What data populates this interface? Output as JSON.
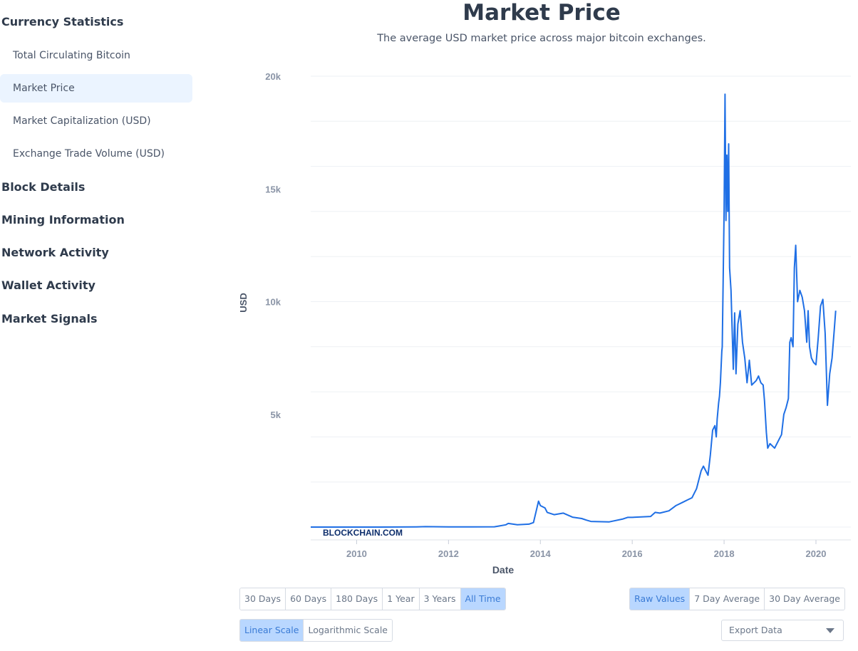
{
  "sidebar": {
    "sections": [
      {
        "label": "Currency Statistics"
      },
      {
        "label": "Block Details"
      },
      {
        "label": "Mining Information"
      },
      {
        "label": "Network Activity"
      },
      {
        "label": "Wallet Activity"
      },
      {
        "label": "Market Signals"
      }
    ],
    "sub_items": [
      {
        "label": "Total Circulating Bitcoin"
      },
      {
        "label": "Market Price"
      },
      {
        "label": "Market Capitalization (USD)"
      },
      {
        "label": "Exchange Trade Volume (USD)"
      }
    ]
  },
  "page": {
    "title": "Market Price",
    "subtitle": "The average USD market price across major bitcoin exchanges."
  },
  "watermark": "BLOCKCHAIN.COM",
  "controls": {
    "ranges": [
      "30 Days",
      "60 Days",
      "180 Days",
      "1 Year",
      "3 Years",
      "All Time"
    ],
    "active_range": "All Time",
    "averages": [
      "Raw Values",
      "7 Day Average",
      "30 Day Average"
    ],
    "active_average": "Raw Values",
    "scales": [
      "Linear Scale",
      "Logarithmic Scale"
    ],
    "active_scale": "Linear Scale",
    "export_label": "Export Data"
  },
  "colors": {
    "line": "#1f6fe5",
    "accent_bg": "#b9d7ff",
    "active_item_bg": "#ebf4ff"
  },
  "chart_data": {
    "type": "line",
    "title": "Market Price",
    "subtitle": "The average USD market price across major bitcoin exchanges.",
    "xlabel": "Date",
    "ylabel": "USD",
    "xlim": [
      2009.0,
      2020.45
    ],
    "ylim": [
      0,
      20000
    ],
    "x_ticks": [
      2010,
      2012,
      2014,
      2016,
      2018,
      2020
    ],
    "y_ticks": [
      5000,
      10000,
      15000,
      20000
    ],
    "y_tick_labels": [
      "5k",
      "10k",
      "15k",
      "20k"
    ],
    "x_tick_labels": [
      "2010",
      "2012",
      "2014",
      "2016",
      "2018",
      "2020"
    ],
    "grid": true,
    "series": [
      {
        "x": [
          2009.0,
          2010.5,
          2011.3,
          2011.5,
          2012.0,
          2012.5,
          2013.0,
          2013.25,
          2013.3,
          2013.5,
          2013.75,
          2013.85,
          2013.92,
          2013.96,
          2014.0,
          2014.1,
          2014.15,
          2014.3,
          2014.5,
          2014.7,
          2014.9,
          2015.0,
          2015.1,
          2015.5,
          2015.8,
          2015.9,
          2016.0,
          2016.4,
          2016.5,
          2016.6,
          2016.8,
          2016.95,
          2017.0,
          2017.1,
          2017.2,
          2017.3,
          2017.4,
          2017.5,
          2017.55,
          2017.65,
          2017.7,
          2017.75,
          2017.8,
          2017.83,
          2017.85,
          2017.88,
          2017.9,
          2017.92,
          2017.95,
          2017.96,
          2017.98,
          2018.0,
          2018.02,
          2018.04,
          2018.06,
          2018.08,
          2018.1,
          2018.12,
          2018.15,
          2018.2,
          2018.23,
          2018.26,
          2018.3,
          2018.35,
          2018.4,
          2018.45,
          2018.5,
          2018.55,
          2018.6,
          2018.7,
          2018.75,
          2018.8,
          2018.85,
          2018.88,
          2018.92,
          2018.95,
          2019.0,
          2019.1,
          2019.2,
          2019.25,
          2019.3,
          2019.35,
          2019.4,
          2019.43,
          2019.46,
          2019.5,
          2019.53,
          2019.56,
          2019.6,
          2019.65,
          2019.7,
          2019.75,
          2019.8,
          2019.83,
          2019.86,
          2019.9,
          2019.95,
          2020.0,
          2020.05,
          2020.1,
          2020.15,
          2020.18,
          2020.2,
          2020.25,
          2020.3,
          2020.35,
          2020.4,
          2020.43
        ],
        "y": [
          0,
          0,
          10,
          20,
          6,
          8,
          14,
          100,
          160,
          100,
          130,
          200,
          800,
          1150,
          950,
          850,
          650,
          550,
          620,
          440,
          380,
          310,
          250,
          230,
          360,
          430,
          430,
          470,
          650,
          620,
          720,
          950,
          1000,
          1100,
          1200,
          1300,
          1700,
          2500,
          2700,
          2300,
          3200,
          4300,
          4500,
          4000,
          4800,
          5500,
          5800,
          6400,
          7800,
          8000,
          11000,
          14000,
          19200,
          13600,
          16500,
          14000,
          17000,
          11500,
          10500,
          7000,
          9500,
          6800,
          9000,
          9600,
          8200,
          7500,
          6400,
          7400,
          6300,
          6500,
          6700,
          6400,
          6300,
          5600,
          4200,
          3500,
          3700,
          3500,
          3900,
          4100,
          5000,
          5300,
          5700,
          8200,
          8400,
          8000,
          11500,
          12500,
          10000,
          10500,
          10200,
          9600,
          8200,
          9600,
          8000,
          7500,
          7300,
          7200,
          8400,
          9800,
          10100,
          9200,
          8600,
          5400,
          6800,
          7500,
          8800,
          9600
        ]
      }
    ]
  }
}
